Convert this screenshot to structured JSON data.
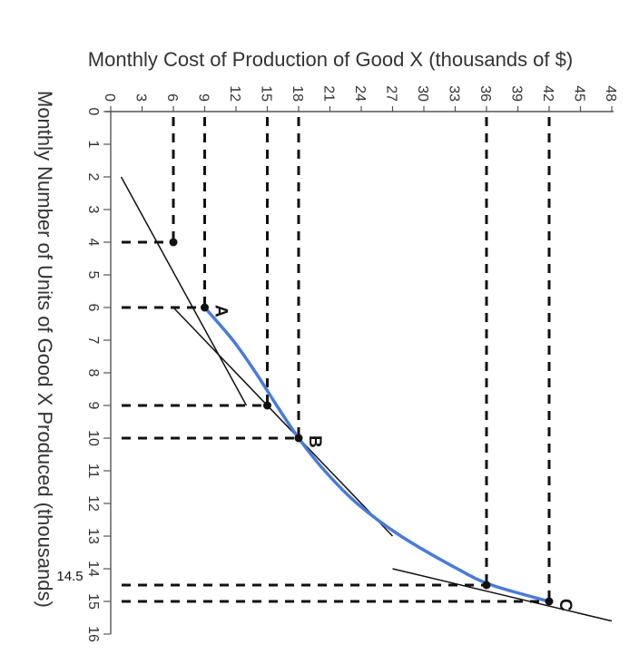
{
  "chart_data": {
    "type": "line",
    "title": "",
    "rotated": "90 degrees clockwise",
    "xlabel": "Monthly Number of Units of Good X Produced (thousands)",
    "ylabel": "Monthly Cost of Production of Good X (thousands of $)",
    "xlim": [
      0,
      16
    ],
    "ylim": [
      0,
      48
    ],
    "x_ticks": [
      0,
      1,
      2,
      3,
      4,
      5,
      6,
      7,
      8,
      9,
      10,
      11,
      12,
      13,
      14,
      15,
      16
    ],
    "y_ticks": [
      0,
      3,
      6,
      9,
      12,
      15,
      18,
      21,
      24,
      27,
      30,
      33,
      36,
      39,
      42,
      45,
      48
    ],
    "extra_x_label": "14.5",
    "curve": {
      "color": "#4a7bd8",
      "points": [
        {
          "x": 6,
          "y": 9
        },
        {
          "x": 7,
          "y": 11.7
        },
        {
          "x": 8,
          "y": 13.9
        },
        {
          "x": 9,
          "y": 15.9
        },
        {
          "x": 10,
          "y": 18
        },
        {
          "x": 11,
          "y": 20.5
        },
        {
          "x": 12,
          "y": 23.6
        },
        {
          "x": 13,
          "y": 27.8
        },
        {
          "x": 14,
          "y": 33.2
        },
        {
          "x": 14.5,
          "y": 36.5
        },
        {
          "x": 15,
          "y": 42
        }
      ]
    },
    "labeled_points": [
      {
        "label": "A",
        "x": 6,
        "y": 9
      },
      {
        "label": "B",
        "x": 10,
        "y": 18
      },
      {
        "label": "C",
        "x": 15,
        "y": 42
      }
    ],
    "marked_points": [
      {
        "x": 4,
        "y": 6
      },
      {
        "x": 6,
        "y": 9
      },
      {
        "x": 9,
        "y": 15
      },
      {
        "x": 10,
        "y": 18
      },
      {
        "x": 14.5,
        "y": 36
      },
      {
        "x": 15,
        "y": 42
      }
    ],
    "vertical_dashed_at_cost": [
      6,
      9,
      15,
      18,
      36,
      42
    ],
    "horizontal_dashed_at_units": [
      4,
      6,
      9,
      10,
      14.5,
      15
    ],
    "tangent_lines": [
      {
        "from": {
          "x": 2,
          "y": 1
        },
        "to": {
          "x": 9,
          "y": 13
        }
      },
      {
        "from": {
          "x": 6,
          "y": 6
        },
        "to": {
          "x": 13,
          "y": 27
        }
      },
      {
        "from": {
          "x": 14,
          "y": 27
        },
        "to": {
          "x": 15.6,
          "y": 48
        }
      }
    ],
    "grid": false,
    "legend": "none"
  }
}
